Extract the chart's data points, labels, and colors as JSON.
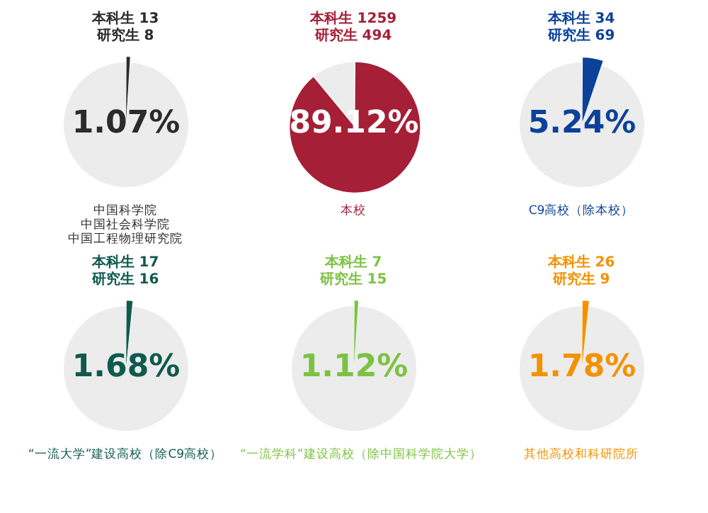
{
  "chart_data": [
    {
      "type": "pie",
      "title": "中国科学院",
      "subtitle": "中国社会科学院",
      "categories": [
        null,
        null
      ],
      "values": [
        1.07,
        98.93
      ],
      "colors": [
        "#2b2b2b",
        "#ececec"
      ],
      "value_labels": [
        "1.07%",
        null
      ],
      "annotations": [
        "本科生 13",
        "研究生 8",
        "中国工程物理研究院"
      ]
    },
    {
      "type": "pie",
      "title": "本校",
      "categories": [
        null,
        null
      ],
      "values": [
        89.12,
        10.88
      ],
      "colors": [
        "#a51f37",
        "#ececec"
      ],
      "value_labels": [
        "89.12%",
        null
      ],
      "annotations": [
        "本科生 1259",
        "研究生 494"
      ]
    },
    {
      "type": "pie",
      "title": "C9高校（除本校）",
      "categories": [
        null,
        null
      ],
      "values": [
        5.24,
        94.76
      ],
      "colors": [
        "#0b4199",
        "#ececec"
      ],
      "value_labels": [
        "5.24%",
        null
      ],
      "annotations": [
        "本科生 34",
        "研究生 69"
      ]
    },
    {
      "type": "pie",
      "title": "“一流大学”建设高校（除C9高校）",
      "categories": [
        null,
        null
      ],
      "values": [
        1.68,
        98.32
      ],
      "colors": [
        "#0f5a4e",
        "#ececec"
      ],
      "value_labels": [
        "1.68%",
        null
      ],
      "annotations": [
        "本科生 17",
        "研究生 16"
      ]
    },
    {
      "type": "pie",
      "title": "“一流学科”建设高校（除中国科学院大学）",
      "categories": [
        null,
        null
      ],
      "values": [
        1.12,
        98.88
      ],
      "colors": [
        "#7dc242",
        "#ececec"
      ],
      "value_labels": [
        "1.12%",
        null
      ],
      "annotations": [
        "本科生 7",
        "研究生 15"
      ]
    },
    {
      "type": "pie",
      "title": "其他高校和科研院所",
      "categories": [
        null,
        null
      ],
      "values": [
        1.78,
        98.22
      ],
      "colors": [
        "#f39200",
        "#ececec"
      ],
      "value_labels": [
        "1.78%",
        null
      ],
      "annotations": [
        "本科生 26",
        "研究生 9"
      ]
    }
  ]
}
